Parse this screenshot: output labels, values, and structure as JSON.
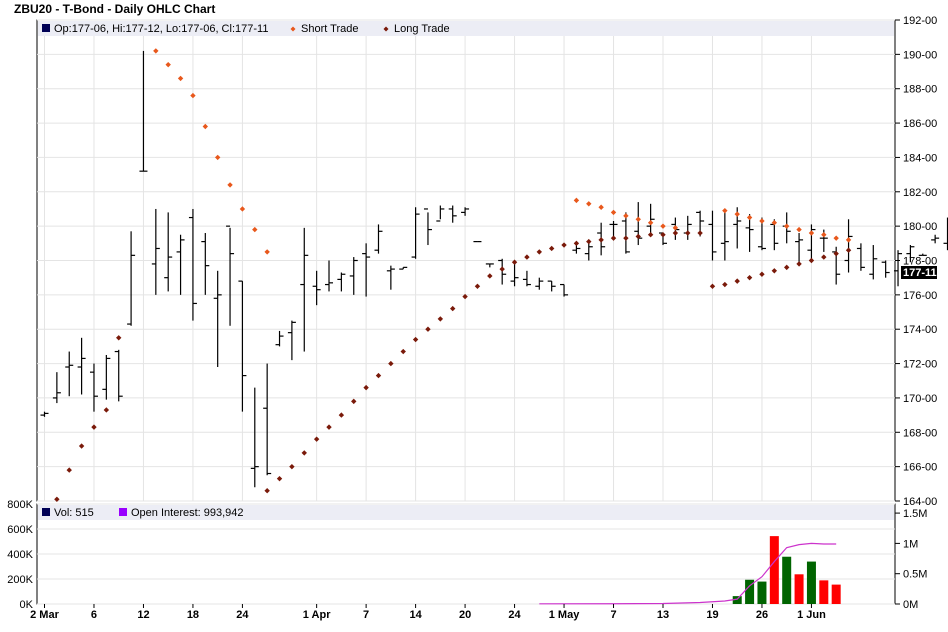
{
  "chart_data": [
    {
      "type": "ohlc",
      "title": "ZBU20 - T-Bond - Daily OHLC Chart",
      "legend": {
        "ohlc_label": "Op:177-06, Hi:177-12, Lo:177-06, Cl:177-11",
        "short_label": "Short Trade",
        "long_label": "Long Trade",
        "placement": "top-left"
      },
      "last_price_label": "177-11",
      "y_ticks": [
        "192-00",
        "190-00",
        "188-00",
        "186-00",
        "184-00",
        "182-00",
        "180-00",
        "178-00",
        "176-00",
        "174-00",
        "172-00",
        "170-00",
        "168-00",
        "166-00",
        "164-00"
      ],
      "ylim": [
        164,
        192
      ],
      "x_tick_labels": [
        {
          "label": "2 Mar",
          "i": 0
        },
        {
          "label": "6",
          "i": 4
        },
        {
          "label": "12",
          "i": 8
        },
        {
          "label": "18",
          "i": 12
        },
        {
          "label": "24",
          "i": 16
        },
        {
          "label": "1 Apr",
          "i": 22
        },
        {
          "label": "7",
          "i": 26
        },
        {
          "label": "14",
          "i": 30
        },
        {
          "label": "20",
          "i": 34
        },
        {
          "label": "24",
          "i": 38
        },
        {
          "label": "1 May",
          "i": 42
        },
        {
          "label": "7",
          "i": 46
        },
        {
          "label": "13",
          "i": 50
        },
        {
          "label": "19",
          "i": 54
        },
        {
          "label": "26",
          "i": 58
        },
        {
          "label": "1 Jun",
          "i": 62
        }
      ],
      "series_ohlc": [
        [
          169.0,
          169.2,
          168.9,
          169.1
        ],
        [
          170.0,
          171.5,
          169.7,
          170.3
        ],
        [
          171.8,
          172.7,
          170.1,
          171.9
        ],
        [
          171.8,
          173.5,
          170.2,
          172.3
        ],
        [
          171.5,
          172.0,
          169.2,
          170.1
        ],
        [
          170.5,
          172.5,
          169.9,
          172.3
        ],
        [
          172.7,
          172.8,
          169.8,
          170.1
        ],
        [
          174.3,
          179.7,
          174.2,
          178.3
        ],
        [
          183.2,
          190.2,
          183.2,
          183.2
        ],
        [
          177.8,
          181.0,
          176.0,
          178.7
        ],
        [
          177.0,
          180.8,
          176.2,
          178.2
        ],
        [
          178.5,
          179.5,
          176.0,
          179.2
        ],
        [
          180.5,
          181.0,
          174.5,
          175.5
        ],
        [
          179.1,
          179.6,
          176.0,
          177.7
        ],
        [
          175.8,
          177.4,
          171.8,
          176.0
        ],
        [
          180.0,
          179.9,
          174.2,
          178.4
        ],
        [
          176.8,
          176.8,
          169.2,
          171.3
        ],
        [
          165.9,
          170.6,
          164.8,
          166.0
        ],
        [
          169.4,
          172.0,
          165.5,
          165.6
        ],
        [
          173.1,
          173.9,
          173.0,
          173.6
        ],
        [
          173.8,
          174.5,
          172.2,
          174.4
        ],
        [
          176.6,
          179.9,
          172.7,
          178.3
        ],
        [
          176.5,
          177.4,
          175.4,
          176.3
        ],
        [
          176.6,
          178.0,
          176.2,
          176.7
        ],
        [
          176.9,
          177.3,
          176.2,
          177.2
        ],
        [
          177.1,
          178.2,
          176.0,
          178.0
        ],
        [
          178.4,
          179.0,
          175.9,
          178.2
        ],
        [
          178.6,
          180.1,
          178.4,
          179.7
        ],
        [
          177.4,
          177.7,
          176.3,
          177.5
        ],
        [
          177.5,
          177.6,
          177.5,
          177.6
        ],
        [
          178.2,
          181.1,
          178.1,
          180.7
        ],
        [
          181.0,
          180.8,
          178.9,
          179.8
        ],
        [
          180.3,
          181.2,
          180.4,
          181.0
        ],
        [
          181.0,
          181.2,
          180.2,
          180.6
        ],
        [
          180.8,
          181.1,
          180.6,
          181.0
        ],
        [
          179.1,
          179.1,
          179.1,
          179.1
        ],
        [
          177.8,
          177.8,
          177.6,
          177.8
        ],
        [
          178.0,
          178.1,
          176.6,
          177.2
        ],
        [
          176.8,
          178.0,
          176.5,
          177.0
        ],
        [
          176.9,
          177.4,
          176.5,
          176.6
        ],
        [
          176.5,
          177.0,
          176.3,
          176.8
        ],
        [
          176.8,
          176.8,
          176.2,
          176.5
        ],
        [
          176.6,
          176.6,
          175.9,
          176.0
        ],
        [
          178.6,
          178.9,
          178.4,
          178.7
        ],
        [
          178.4,
          179.1,
          178.0,
          178.8
        ],
        [
          179.6,
          180.2,
          178.3,
          178.8
        ],
        [
          180.1,
          180.3,
          179.2,
          180.1
        ],
        [
          180.3,
          180.8,
          178.4,
          178.5
        ],
        [
          179.7,
          181.4,
          178.9,
          179.3
        ],
        [
          180.0,
          181.3,
          179.6,
          180.4
        ],
        [
          179.6,
          179.6,
          178.9,
          179.0
        ],
        [
          180.1,
          180.5,
          179.2,
          179.8
        ],
        [
          179.6,
          180.6,
          179.2,
          180.1
        ],
        [
          180.8,
          180.9,
          179.4,
          180.3
        ],
        [
          180.1,
          180.9,
          178.0,
          178.5
        ],
        [
          179.0,
          180.8,
          178.0,
          179.1
        ],
        [
          180.1,
          181.1,
          178.7,
          180.3
        ],
        [
          179.9,
          180.7,
          178.5,
          179.8
        ],
        [
          178.8,
          180.5,
          178.6,
          178.7
        ],
        [
          180.1,
          180.4,
          178.6,
          179.0
        ],
        [
          180.0,
          180.8,
          179.0,
          179.7
        ],
        [
          179.1,
          179.6,
          177.8,
          179.2
        ],
        [
          178.6,
          180.1,
          178.1,
          179.8
        ],
        [
          179.3,
          179.8,
          178.5,
          179.3
        ],
        [
          178.5,
          178.8,
          176.6,
          177.2
        ],
        [
          178.0,
          180.4,
          177.3,
          179.4
        ],
        [
          178.7,
          179.0,
          177.4,
          177.6
        ],
        [
          177.2,
          178.9,
          176.9,
          178.1
        ],
        [
          177.9,
          178.0,
          177.0,
          177.3
        ],
        [
          177.4,
          178.6,
          176.5,
          178.4
        ],
        [
          178.4,
          178.9,
          177.9,
          178.8
        ],
        [
          178.3,
          178.4,
          178.3,
          178.3
        ],
        [
          179.2,
          179.5,
          179.0,
          179.3
        ],
        [
          179.0,
          180.5,
          178.6,
          180.3
        ],
        [
          180.6,
          180.8,
          178.8,
          180.2
        ],
        [
          178.0,
          179.6,
          176.5,
          176.7
        ],
        [
          177.6,
          178.0,
          176.3,
          176.8
        ],
        [
          176.8,
          177.6,
          176.4,
          177.2
        ],
        [
          177.5,
          177.9,
          177.1,
          177.4
        ],
        [
          178.3,
          178.9,
          177.6,
          177.8
        ],
        [
          178.0,
          178.5,
          177.8,
          178.0
        ],
        [
          178.4,
          178.6,
          178.1,
          178.3
        ],
        [
          178.7,
          179.1,
          178.1,
          178.6
        ],
        [
          178.8,
          179.4,
          178.4,
          179.3
        ],
        [
          179.4,
          179.1,
          178.1,
          178.4
        ],
        [
          177.8,
          178.0,
          176.9,
          177.6
        ],
        [
          177.7,
          178.0,
          176.6,
          177.6
        ],
        [
          177.4,
          177.8,
          177.0,
          177.2
        ],
        [
          177.0,
          177.6,
          176.9,
          177.2
        ],
        [
          177.5,
          178.4,
          177.4,
          178.3
        ],
        [
          178.2,
          178.4,
          177.8,
          178.0
        ],
        [
          177.8,
          178.0,
          177.3,
          177.8
        ],
        [
          177.2,
          177.5,
          176.9,
          177.4
        ],
        [
          177.2,
          177.4,
          177.2,
          177.3
        ]
      ],
      "long_trade": {
        "start_i": 1,
        "values": [
          164.1,
          165.8,
          167.2,
          168.3,
          169.3,
          173.5,
          175.9,
          175.9,
          176.0,
          176.1,
          176.2,
          176.3,
          176.4,
          176.5,
          176.6,
          176.7,
          176.8,
          164.6,
          165.3,
          166.0,
          166.8,
          167.6,
          168.3,
          169.0,
          169.8,
          170.6,
          171.3,
          172.0,
          172.7,
          173.4,
          174.0,
          174.6,
          175.2,
          175.9,
          176.5,
          177.1,
          177.5,
          177.9,
          178.2,
          178.5,
          178.7,
          178.9,
          179.0,
          179.1,
          179.2,
          179.3,
          179.3,
          179.4,
          179.5,
          179.5,
          179.6,
          179.6,
          179.6,
          176.5,
          176.6,
          176.8,
          177.0,
          177.2,
          177.4,
          177.6,
          177.8,
          178.0,
          178.2,
          178.4,
          178.6
        ]
      },
      "short_trade": {
        "points": [
          [
            9,
            190.2
          ],
          [
            10,
            189.4
          ],
          [
            11,
            188.6
          ],
          [
            12,
            187.6
          ],
          [
            13,
            185.8
          ],
          [
            14,
            184.0
          ],
          [
            15,
            182.4
          ],
          [
            16,
            181.0
          ],
          [
            17,
            179.8
          ],
          [
            18,
            178.5
          ],
          [
            43,
            181.5
          ],
          [
            44,
            181.3
          ],
          [
            45,
            181.1
          ],
          [
            46,
            180.8
          ],
          [
            47,
            180.6
          ],
          [
            48,
            180.4
          ],
          [
            49,
            180.2
          ],
          [
            50,
            180.0
          ],
          [
            51,
            179.9
          ],
          [
            55,
            180.9
          ],
          [
            56,
            180.7
          ],
          [
            57,
            180.5
          ],
          [
            58,
            180.3
          ],
          [
            59,
            180.2
          ],
          [
            60,
            180.0
          ],
          [
            61,
            179.8
          ],
          [
            62,
            179.6
          ],
          [
            63,
            179.5
          ],
          [
            64,
            179.3
          ],
          [
            65,
            179.2
          ]
        ]
      },
      "colors": {
        "short": "#e8581c",
        "long": "#7a1a0a",
        "ohlc": "#000000"
      }
    },
    {
      "type": "bar",
      "title": "",
      "legend": {
        "vol_label": "Vol: 515",
        "oi_label": "Open Interest: 993,942",
        "placement": "top-left"
      },
      "left_ticks": [
        "800K",
        "600K",
        "400K",
        "200K",
        "0K"
      ],
      "left_lim": [
        0,
        800000
      ],
      "right_ticks": [
        "1.5M",
        "1M",
        "0.5M",
        "0M"
      ],
      "right_lim": [
        0,
        1650000
      ],
      "bars": [
        {
          "i": 56,
          "value": 130000,
          "color": "green"
        },
        {
          "i": 57,
          "value": 400000,
          "color": "green"
        },
        {
          "i": 58,
          "value": 370000,
          "color": "green"
        },
        {
          "i": 59,
          "value": 1120000,
          "color": "red"
        },
        {
          "i": 60,
          "value": 780000,
          "color": "green"
        },
        {
          "i": 61,
          "value": 490000,
          "color": "red"
        },
        {
          "i": 62,
          "value": 700000,
          "color": "green"
        },
        {
          "i": 63,
          "value": 390000,
          "color": "red"
        },
        {
          "i": 64,
          "value": 320000,
          "color": "red"
        }
      ],
      "open_interest": [
        [
          40,
          0.003
        ],
        [
          46,
          0.004
        ],
        [
          50,
          0.008
        ],
        [
          53,
          0.025
        ],
        [
          55,
          0.05
        ],
        [
          56,
          0.08
        ],
        [
          57,
          0.3
        ],
        [
          58,
          0.45
        ],
        [
          59,
          0.7
        ],
        [
          60,
          0.93
        ],
        [
          61,
          0.98
        ],
        [
          62,
          1.0
        ],
        [
          63,
          0.99
        ],
        [
          64,
          0.99
        ]
      ],
      "colors": {
        "up": "#006400",
        "down": "#ff0000",
        "oi": "#cc33cc",
        "vol_swatch": "#000055",
        "oi_swatch": "#9900ff"
      }
    }
  ]
}
